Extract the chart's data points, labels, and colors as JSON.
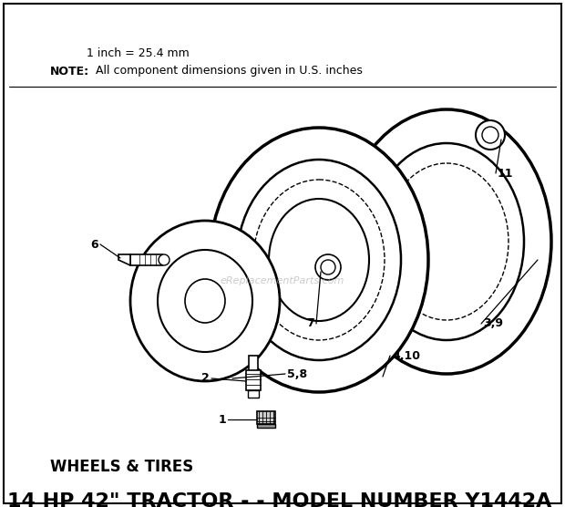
{
  "title": "14 HP 42\" TRACTOR - - MODEL NUMBER Y1442A",
  "subtitle": "WHEELS & TIRES",
  "watermark": "eReplacementParts.com",
  "background_color": "#ffffff",
  "title_fontsize": 16,
  "subtitle_fontsize": 12,
  "note_bold": "NOTE:",
  "note_line1": "All component dimensions given in U.S. inches",
  "note_line2": "1 inch = 25.4 mm"
}
